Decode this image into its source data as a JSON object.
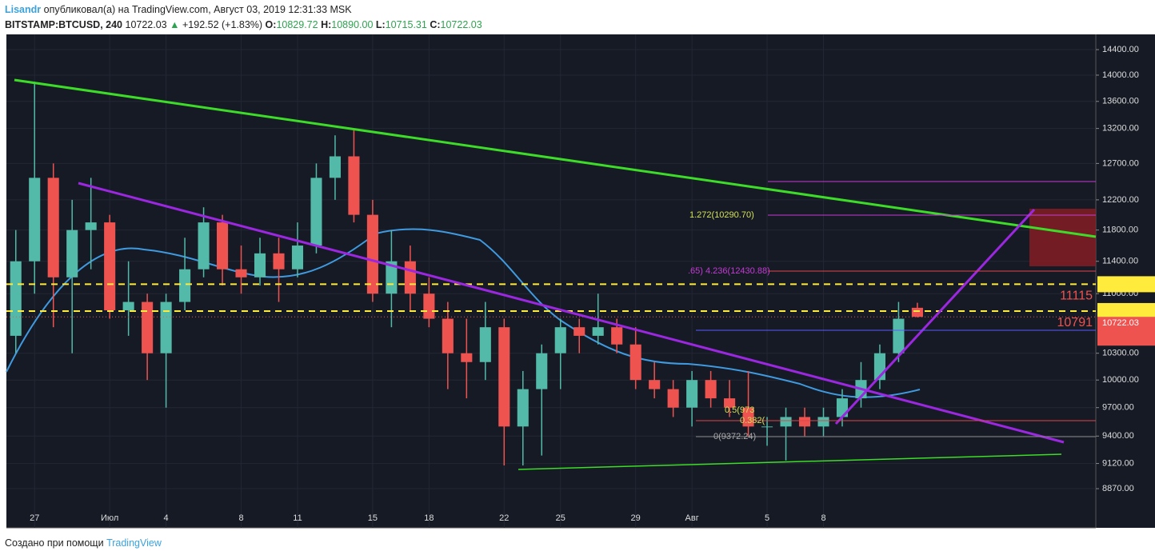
{
  "header": {
    "author": "Lisandr",
    "published": "опубликовал(а) на TradingView.com, Август 03, 2019 12:31:33 MSK",
    "symbol": "BITSTAMP:BTCUSD, 240",
    "price": "10722.03",
    "arrow": "▲",
    "change": "+192.52 (+1.83%)",
    "o_label": "O:",
    "o": "10829.72",
    "h_label": "H:",
    "h": "10890.00",
    "l_label": "L:",
    "l": "10715.31",
    "c_label": "C:",
    "c": "10722.03"
  },
  "footer": {
    "made_with": "Создано при помощи",
    "brand": "TradingView"
  },
  "chart_data": {
    "type": "candlestick",
    "log": true,
    "grid": true,
    "up_color": "#53b9a8",
    "down_color": "#ef5350",
    "level_color": "#ffeb3b",
    "ylim": [
      8495,
      14644
    ],
    "yticks": [
      {
        "value": 8870,
        "label": "8870.00"
      },
      {
        "value": 9120,
        "label": "9120.00"
      },
      {
        "value": 9400,
        "label": "9400.00"
      },
      {
        "value": 9700,
        "label": "9700.00"
      },
      {
        "value": 10000,
        "label": "10000.00"
      },
      {
        "value": 10300,
        "label": "10300.00"
      },
      {
        "value": 11000,
        "label": "11000.00"
      },
      {
        "value": 11400,
        "label": "11400.00"
      },
      {
        "value": 11800,
        "label": "11800.00"
      },
      {
        "value": 12200,
        "label": "12200.00"
      },
      {
        "value": 12700,
        "label": "12700.00"
      },
      {
        "value": 13200,
        "label": "13200.00"
      },
      {
        "value": 13600,
        "label": "13600.00"
      },
      {
        "value": 14000,
        "label": "14000.00"
      },
      {
        "value": 14400,
        "label": "14400.00"
      }
    ],
    "categories": [
      null,
      "27",
      null,
      null,
      null,
      "Июл",
      null,
      null,
      "4",
      null,
      null,
      null,
      "8",
      null,
      null,
      "11",
      null,
      null,
      null,
      "15",
      null,
      null,
      "18",
      null,
      null,
      null,
      "22",
      null,
      null,
      "25",
      null,
      null,
      null,
      "29",
      null,
      null,
      "Авг",
      null,
      null,
      null,
      "5",
      null,
      null,
      "8",
      null,
      null,
      null,
      null,
      null,
      null,
      null,
      null,
      null,
      null,
      null,
      null,
      null,
      null
    ],
    "open": [
      10500,
      11400,
      12500,
      11200,
      11800,
      11900,
      10800,
      10900,
      10300,
      10900,
      11300,
      11900,
      11300,
      11200,
      11500,
      11300,
      11600,
      12500,
      12800,
      12000,
      11000,
      11400,
      11000,
      10700,
      10300,
      10200,
      10600,
      9500,
      9900,
      10300,
      10600,
      10500,
      10600,
      10400,
      10000,
      9900,
      9700,
      10000,
      9800,
      9700,
      9500,
      9500,
      9600,
      9500,
      9600,
      9800,
      10000,
      10300,
      10829.72,
      null,
      null,
      null,
      null,
      null,
      null,
      null,
      null,
      null
    ],
    "high": [
      11800,
      13900,
      12700,
      12200,
      12500,
      12000,
      11400,
      11000,
      11000,
      11700,
      12100,
      12000,
      11600,
      11700,
      11700,
      11900,
      12700,
      13100,
      13200,
      12200,
      11800,
      11600,
      11200,
      10900,
      10700,
      10900,
      10700,
      10100,
      10400,
      10700,
      10700,
      11000,
      10700,
      10600,
      10200,
      10000,
      10100,
      10100,
      10000,
      10100,
      9600,
      9700,
      9700,
      9700,
      9900,
      10200,
      10400,
      10900,
      10890,
      null,
      null,
      null,
      null,
      null,
      null,
      null,
      null,
      null
    ],
    "low": [
      10300,
      11000,
      10600,
      10300,
      11300,
      10700,
      10500,
      10000,
      9700,
      10800,
      11200,
      11100,
      11000,
      11100,
      10900,
      11200,
      11500,
      12200,
      11900,
      10900,
      10600,
      10800,
      10600,
      9900,
      9800,
      10000,
      9100,
      9100,
      9200,
      9900,
      10300,
      10400,
      10300,
      9900,
      9800,
      9600,
      9500,
      9700,
      9600,
      9400,
      9300,
      9150,
      9400,
      9400,
      9500,
      9700,
      9900,
      10200,
      10715.31,
      null,
      null,
      null,
      null,
      null,
      null,
      null,
      null,
      null
    ],
    "close": [
      11400,
      12500,
      11200,
      11800,
      11900,
      10800,
      10900,
      10300,
      10900,
      11300,
      11900,
      11300,
      11200,
      11500,
      11300,
      11600,
      12500,
      12800,
      12000,
      11000,
      11400,
      11000,
      10700,
      10300,
      10200,
      10600,
      9500,
      9900,
      10300,
      10600,
      10500,
      10600,
      10400,
      10000,
      9900,
      9700,
      10000,
      9800,
      9700,
      9500,
      9500,
      9600,
      9500,
      9600,
      9800,
      10000,
      10300,
      10700,
      10722.03,
      null,
      null,
      null,
      null,
      null,
      null,
      null,
      null,
      null
    ],
    "levels": [
      11115,
      10791
    ],
    "last_price": 10722.03,
    "annotations": [
      "1.272(10290.70)",
      ".65) 4.236(12430.88)",
      "0(9372.24)",
      "0.5(973",
      "0.382("
    ]
  }
}
